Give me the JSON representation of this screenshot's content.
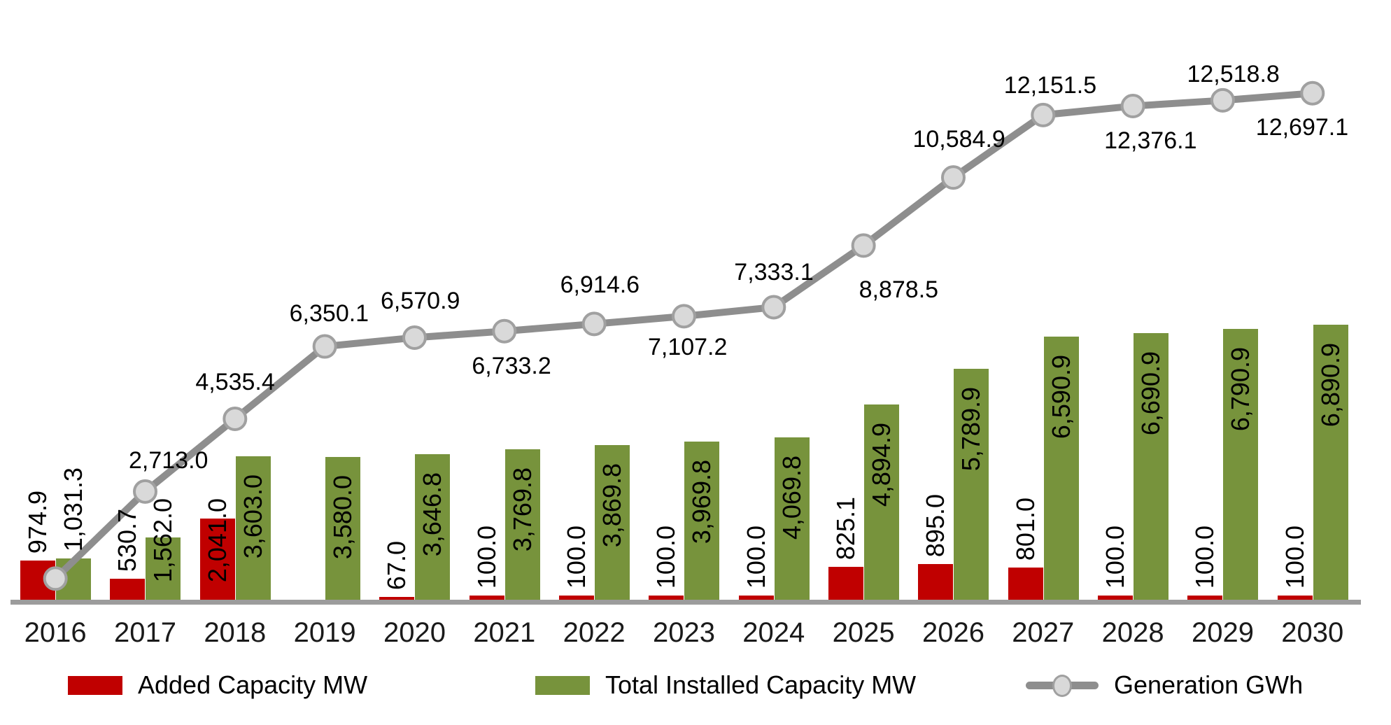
{
  "chart_data": {
    "type": "combo-bar-line",
    "title": "",
    "categories": [
      "2016",
      "2017",
      "2018",
      "2019",
      "2020",
      "2021",
      "2022",
      "2023",
      "2024",
      "2025",
      "2026",
      "2027",
      "2028",
      "2029",
      "2030"
    ],
    "grid": false,
    "value_axis_visible": false,
    "ylim": [
      0,
      14500
    ],
    "legend_position": "bottom",
    "series": [
      {
        "name": "Added Capacity MW",
        "type": "bar",
        "color": "#C00000",
        "values": [
          974.9,
          530.7,
          2041.0,
          null,
          67.0,
          100.0,
          100.0,
          100.0,
          100.0,
          825.1,
          895.0,
          801.0,
          100.0,
          100.0,
          100.0
        ],
        "labels": [
          "974.9",
          "530.7",
          "2,041.0",
          "",
          "67.0",
          "100.0",
          "100.0",
          "100.0",
          "100.0",
          "825.1",
          "895.0",
          "801.0",
          "100.0",
          "100.0",
          "100.0"
        ]
      },
      {
        "name": "Total Installed Capacity MW",
        "type": "bar",
        "color": "#77933C",
        "values": [
          1031.3,
          1562.0,
          3603.0,
          3580.0,
          3646.8,
          3769.8,
          3869.8,
          3969.8,
          4069.8,
          4894.9,
          5789.9,
          6590.9,
          6690.9,
          6790.9,
          6890.9
        ],
        "labels": [
          "1,031.3",
          "1,562.0",
          "3,603.0",
          "3,580.0",
          "3,646.8",
          "3,769.8",
          "3,869.8",
          "3,969.8",
          "4,069.8",
          "4,894.9",
          "5,789.9",
          "6,590.9",
          "6,690.9",
          "6,790.9",
          "6,890.9"
        ]
      },
      {
        "name": "Generation GWh",
        "type": "line",
        "color": "#8E8E8E",
        "marker_fill": "#D9D9D9",
        "marker_stroke": "#A0A0A0",
        "values": [
          530,
          2713.0,
          4535.4,
          6350.1,
          6570.9,
          6733.2,
          6914.6,
          7107.2,
          7333.1,
          8878.5,
          10584.9,
          12151.5,
          12376.1,
          12518.8,
          12697.1
        ],
        "labels": [
          "",
          "2,713.0",
          "4,535.4",
          "6,350.1",
          "6,570.9",
          "6,733.2",
          "6,914.6",
          "7,107.2",
          "7,333.1",
          "8,878.5",
          "10,584.9",
          "12,151.5",
          "12,376.1",
          "12,518.8",
          "12,697.1"
        ],
        "label_offsets": [
          [
            0,
            0
          ],
          [
            33,
            -44
          ],
          [
            0,
            -52
          ],
          [
            6,
            -47
          ],
          [
            8,
            -52
          ],
          [
            10,
            50
          ],
          [
            8,
            -55
          ],
          [
            5,
            45
          ],
          [
            0,
            -50
          ],
          [
            50,
            64
          ],
          [
            8,
            -54
          ],
          [
            10,
            -42
          ],
          [
            25,
            50
          ],
          [
            15,
            -37
          ],
          [
            -15,
            49
          ]
        ],
        "note_first_point": "2016 generation point has no visible data label; value estimated from marker position"
      }
    ],
    "legend": {
      "entries": [
        {
          "swatch": "red-rect",
          "label": "Added Capacity MW"
        },
        {
          "swatch": "green-rect",
          "label": "Total Installed Capacity MW"
        },
        {
          "swatch": "gray-line-marker",
          "label": "Generation GWh"
        }
      ]
    }
  }
}
